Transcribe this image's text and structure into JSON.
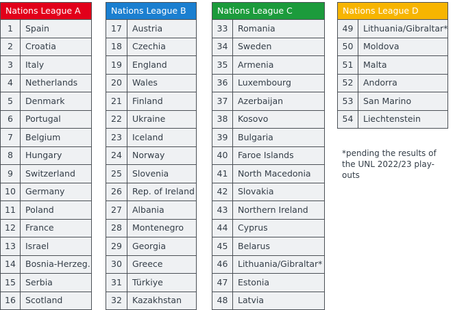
{
  "leagues": [
    {
      "title": "Nations League A",
      "color": "#e2001a",
      "rows": [
        {
          "num": "1",
          "name": "Spain"
        },
        {
          "num": "2",
          "name": "Croatia"
        },
        {
          "num": "3",
          "name": "Italy"
        },
        {
          "num": "4",
          "name": "Netherlands"
        },
        {
          "num": "5",
          "name": "Denmark"
        },
        {
          "num": "6",
          "name": "Portugal"
        },
        {
          "num": "7",
          "name": "Belgium"
        },
        {
          "num": "8",
          "name": "Hungary"
        },
        {
          "num": "9",
          "name": "Switzerland"
        },
        {
          "num": "10",
          "name": "Germany"
        },
        {
          "num": "11",
          "name": "Poland"
        },
        {
          "num": "12",
          "name": "France"
        },
        {
          "num": "13",
          "name": "Israel"
        },
        {
          "num": "14",
          "name": "Bosnia-Herzeg."
        },
        {
          "num": "15",
          "name": "Serbia"
        },
        {
          "num": "16",
          "name": "Scotland"
        }
      ]
    },
    {
      "title": "Nations League B",
      "color": "#1b7fd0",
      "rows": [
        {
          "num": "17",
          "name": "Austria"
        },
        {
          "num": "18",
          "name": "Czechia"
        },
        {
          "num": "19",
          "name": "England"
        },
        {
          "num": "20",
          "name": "Wales"
        },
        {
          "num": "21",
          "name": "Finland"
        },
        {
          "num": "22",
          "name": "Ukraine"
        },
        {
          "num": "23",
          "name": "Iceland"
        },
        {
          "num": "24",
          "name": "Norway"
        },
        {
          "num": "25",
          "name": "Slovenia"
        },
        {
          "num": "26",
          "name": "Rep. of Ireland"
        },
        {
          "num": "27",
          "name": "Albania"
        },
        {
          "num": "28",
          "name": "Montenegro"
        },
        {
          "num": "29",
          "name": "Georgia"
        },
        {
          "num": "30",
          "name": "Greece"
        },
        {
          "num": "31",
          "name": "Türkiye"
        },
        {
          "num": "32",
          "name": "Kazakhstan"
        }
      ]
    },
    {
      "title": "Nations League C",
      "color": "#1c9b3c",
      "rows": [
        {
          "num": "33",
          "name": "Romania"
        },
        {
          "num": "34",
          "name": "Sweden"
        },
        {
          "num": "35",
          "name": "Armenia"
        },
        {
          "num": "36",
          "name": "Luxembourg"
        },
        {
          "num": "37",
          "name": "Azerbaijan"
        },
        {
          "num": "38",
          "name": "Kosovo"
        },
        {
          "num": "39",
          "name": "Bulgaria"
        },
        {
          "num": "40",
          "name": "Faroe Islands"
        },
        {
          "num": "41",
          "name": "North Macedonia"
        },
        {
          "num": "42",
          "name": "Slovakia"
        },
        {
          "num": "43",
          "name": "Northern Ireland"
        },
        {
          "num": "44",
          "name": "Cyprus"
        },
        {
          "num": "45",
          "name": "Belarus"
        },
        {
          "num": "46",
          "name": "Lithuania/Gibraltar*"
        },
        {
          "num": "47",
          "name": "Estonia"
        },
        {
          "num": "48",
          "name": "Latvia"
        }
      ]
    },
    {
      "title": "Nations League D",
      "color": "#f7b500",
      "rows": [
        {
          "num": "49",
          "name": "Lithuania/Gibraltar*"
        },
        {
          "num": "50",
          "name": "Moldova"
        },
        {
          "num": "51",
          "name": "Malta"
        },
        {
          "num": "52",
          "name": "Andorra"
        },
        {
          "num": "53",
          "name": "San Marino"
        },
        {
          "num": "54",
          "name": "Liechtenstein"
        }
      ]
    }
  ],
  "note": "*pending the results of the UNL 2022/23 play-outs"
}
